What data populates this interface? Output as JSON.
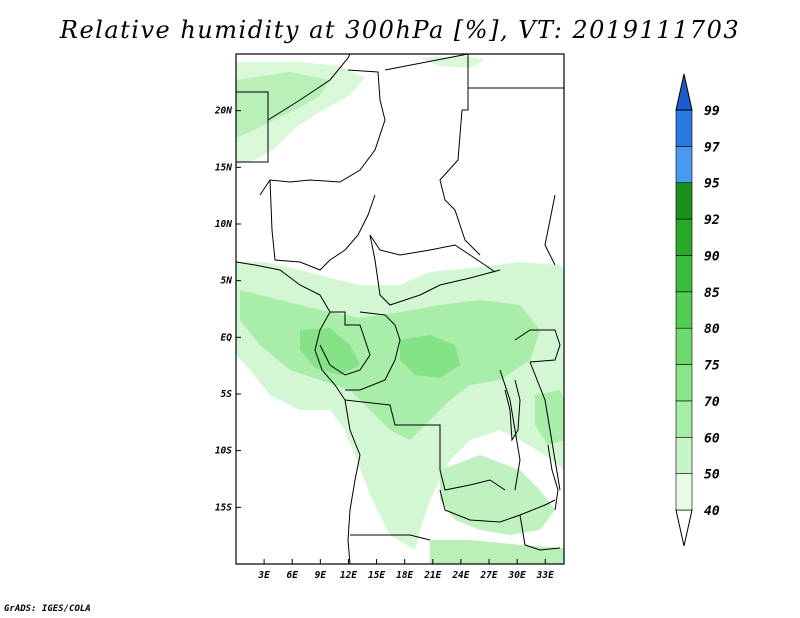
{
  "title": "Relative humidity at 300hPa [%], VT: 2019111703",
  "credit": "GrADS: IGES/COLA",
  "map": {
    "lon_range": [
      0,
      35
    ],
    "lat_range": [
      -20,
      25
    ],
    "lat_ticks": [
      {
        "value": 20,
        "label": "20N"
      },
      {
        "value": 15,
        "label": "15N"
      },
      {
        "value": 10,
        "label": "10N"
      },
      {
        "value": 5,
        "label": "5N"
      },
      {
        "value": 0,
        "label": "EQ"
      },
      {
        "value": -5,
        "label": "5S"
      },
      {
        "value": -10,
        "label": "10S"
      },
      {
        "value": -15,
        "label": "15S"
      }
    ],
    "lon_ticks": [
      {
        "value": 3,
        "label": "3E"
      },
      {
        "value": 6,
        "label": "6E"
      },
      {
        "value": 9,
        "label": "9E"
      },
      {
        "value": 12,
        "label": "12E"
      },
      {
        "value": 15,
        "label": "15E"
      },
      {
        "value": 18,
        "label": "18E"
      },
      {
        "value": 21,
        "label": "21E"
      },
      {
        "value": 24,
        "label": "24E"
      },
      {
        "value": 27,
        "label": "27E"
      },
      {
        "value": 30,
        "label": "30E"
      },
      {
        "value": 33,
        "label": "33E"
      }
    ]
  },
  "colorbar": {
    "levels": [
      "40",
      "50",
      "60",
      "70",
      "75",
      "80",
      "85",
      "90",
      "92",
      "95",
      "97",
      "99"
    ],
    "colors": [
      "#ffffff",
      "#e6fce6",
      "#c6f5c6",
      "#a6eea6",
      "#8ae48a",
      "#6ed96e",
      "#52cc52",
      "#3cbc3c",
      "#2aa82a",
      "#1a901a",
      "#4a9af0",
      "#2a78e0",
      "#1a5ccc"
    ]
  },
  "colors": {
    "light_green": "#d2f7d2",
    "mid_green": "#a8eda8",
    "dark_green": "#86e286",
    "border": "#000000"
  }
}
